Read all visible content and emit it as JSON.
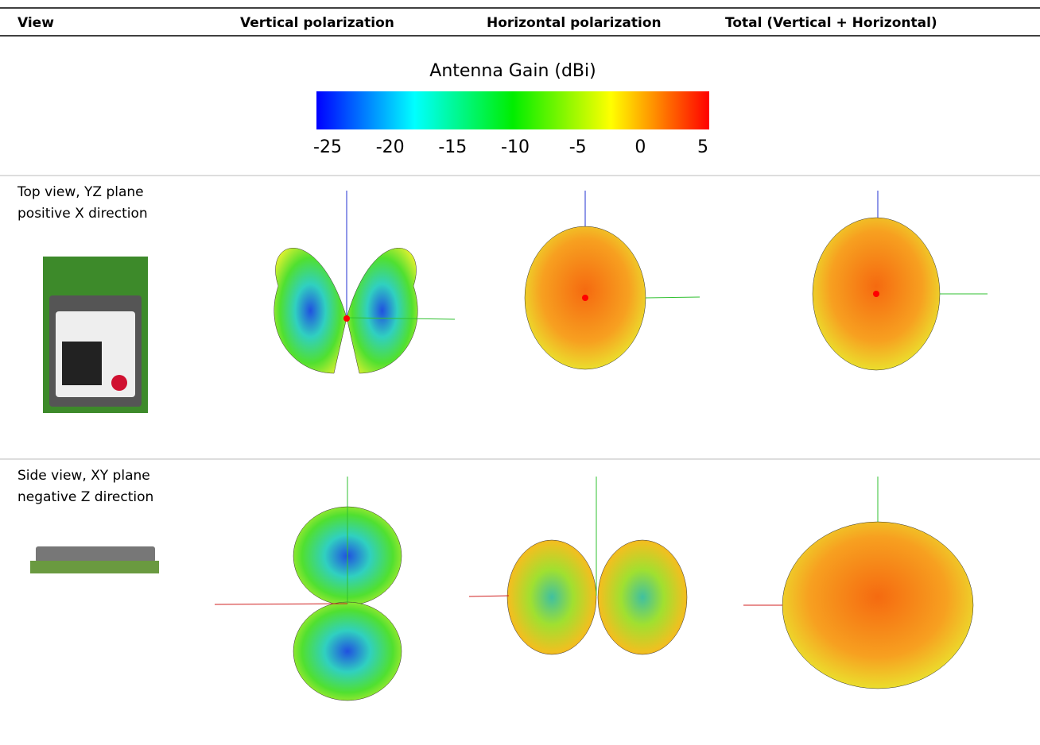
{
  "header": {
    "columns": [
      "View",
      "Vertical polarization",
      "Horizontal polarization",
      "Total (Vertical + Horizontal)"
    ]
  },
  "colorbar": {
    "title": "Antenna Gain (dBi)",
    "lim": [
      -25,
      5
    ],
    "ticks": [
      -25,
      -20,
      -15,
      -10,
      -5,
      0,
      5
    ]
  },
  "rows": [
    {
      "lines": [
        "Top view, YZ plane",
        "positive X direction"
      ]
    },
    {
      "lines": [
        "Side view, XY plane",
        "negative Z direction"
      ]
    }
  ]
}
